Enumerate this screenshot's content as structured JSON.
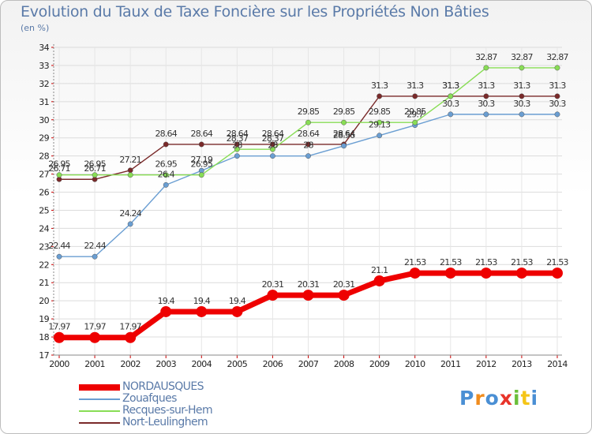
{
  "header": {
    "title": "Evolution du Taux de Taxe Foncière sur les Propriétés Non Bâties",
    "unit": "(en %)"
  },
  "brand": {
    "logo_text": "Proxiti"
  },
  "chart_data": {
    "type": "line",
    "title": "Evolution du Taux de Taxe Foncière sur les Propriétés Non Bâties",
    "xlabel": "",
    "ylabel": "(en %)",
    "x": [
      2000,
      2001,
      2002,
      2003,
      2004,
      2005,
      2006,
      2007,
      2008,
      2009,
      2010,
      2011,
      2012,
      2013,
      2014
    ],
    "ylim": [
      17,
      34
    ],
    "yticks": [
      17,
      18,
      19,
      20,
      21,
      22,
      23,
      24,
      25,
      26,
      27,
      28,
      29,
      30,
      31,
      32,
      33,
      34
    ],
    "grid": true,
    "legend_position": "bottom-left",
    "series": [
      {
        "name": "NORDAUSQUES",
        "color": "#ee0000",
        "values": [
          17.97,
          17.97,
          17.97,
          19.4,
          19.4,
          19.4,
          20.31,
          20.31,
          20.31,
          21.1,
          21.53,
          21.53,
          21.53,
          21.53,
          21.53
        ],
        "labels": [
          "17.97",
          "17.97",
          "17.97",
          "19.4",
          "19.4",
          "19.4",
          "20.31",
          "20.31",
          "20.31",
          "21.1",
          "21.53",
          "21.53",
          "21.53",
          "21.53",
          "21.53"
        ]
      },
      {
        "name": "Zouafques",
        "color": "#6a9ed2",
        "values": [
          22.44,
          22.44,
          24.24,
          26.4,
          27.19,
          28,
          28,
          28,
          28.56,
          29.13,
          29.7,
          30.3,
          30.3,
          30.3,
          30.3
        ],
        "labels": [
          "22.44",
          "22.44",
          "24.24",
          "26.4",
          "27.19",
          "28",
          "28",
          "28",
          "28.56",
          "29.13",
          "29.7",
          "30.3",
          "30.3",
          "30.3",
          "30.3"
        ]
      },
      {
        "name": "Recques-sur-Hem",
        "color": "#88dd55",
        "values": [
          26.95,
          26.95,
          26.95,
          26.95,
          26.95,
          28.37,
          28.37,
          29.85,
          29.85,
          29.85,
          29.85,
          31.3,
          32.87,
          32.87,
          32.87
        ],
        "labels": [
          "26.95",
          "26.95",
          "",
          "26.95",
          "26.95",
          "28.37",
          "28.37",
          "29.85",
          "29.85",
          "29.85",
          "29.85",
          "31.3",
          "32.87",
          "32.87",
          "32.87"
        ]
      },
      {
        "name": "Nort-Leulinghem",
        "color": "#7a2a2a",
        "values": [
          26.71,
          26.71,
          27.21,
          28.64,
          28.64,
          28.64,
          28.64,
          28.64,
          28.64,
          31.3,
          31.3,
          31.3,
          31.3,
          31.3,
          31.3
        ],
        "labels": [
          "26.71",
          "26.71",
          "27.21",
          "28.64",
          "28.64",
          "28.64",
          "28.64",
          "28.64",
          "28.64",
          "31.3",
          "31.3",
          "31.3",
          "31.3",
          "31.3",
          "31.3"
        ]
      }
    ]
  }
}
